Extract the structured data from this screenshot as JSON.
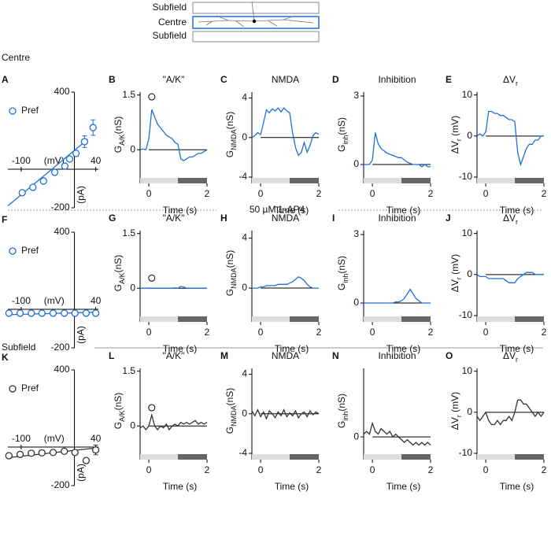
{
  "header": {
    "labels": [
      "Subfield",
      "Centre",
      "Subfield"
    ]
  },
  "sections": {
    "centre": "Centre",
    "drug": [
      "50 µM ",
      "L",
      "-AP4"
    ],
    "subfield": "Subfield"
  },
  "chart_data": [
    {
      "type": "scatter",
      "panel": "A",
      "legend": "Pref",
      "color": "#1e6fd9",
      "x": [
        -98,
        -78,
        -58,
        -37,
        -18,
        -9,
        3,
        19,
        35
      ],
      "values": [
        -122,
        -94,
        -61,
        -16,
        16,
        53,
        82,
        143,
        216
      ],
      "errors": [
        10,
        10,
        10,
        10,
        10,
        10,
        15,
        30,
        40
      ],
      "fit_x": [
        -125,
        25
      ],
      "fit_y": [
        -190,
        155
      ],
      "xlim": [
        -125,
        45
      ],
      "xticks": [
        -100,
        40
      ],
      "xlabel": "(mV)",
      "ylim": [
        -200,
        400
      ],
      "yticks": [
        -200,
        400
      ],
      "ylabel": "(pA)"
    },
    {
      "type": "line",
      "panel": "B",
      "title": "\"A/K\"",
      "ylabel": [
        "G",
        "A/K",
        "(nS)"
      ],
      "xlabel": "Time (s)",
      "color": "#1e6fd9",
      "x": [
        -0.3,
        -0.2,
        -0.1,
        0,
        0.1,
        0.2,
        0.3,
        0.4,
        0.5,
        0.6,
        0.7,
        0.8,
        0.9,
        1.0,
        1.1,
        1.2,
        1.3,
        1.4,
        1.5,
        1.6,
        1.7,
        1.8,
        1.9,
        2.0
      ],
      "values": [
        0,
        0.02,
        0,
        0.3,
        1.1,
        0.9,
        0.7,
        0.6,
        0.5,
        0.4,
        0.35,
        0.3,
        0.2,
        0.15,
        -0.25,
        -0.3,
        -0.25,
        -0.2,
        -0.2,
        -0.15,
        -0.1,
        -0.1,
        -0.05,
        0
      ],
      "marker": {
        "x": 0.1,
        "y": 1.45
      },
      "stimulus": [
        1,
        2
      ],
      "xlim": [
        -0.3,
        2
      ],
      "xticks": [
        0,
        2
      ],
      "ylim": [
        -0.75,
        1.58
      ],
      "yticks": [
        0,
        1.5
      ]
    },
    {
      "type": "line",
      "panel": "C",
      "title": "NMDA",
      "ylabel": [
        "G",
        "NMDA",
        "(nS)"
      ],
      "xlabel": "Time (s)",
      "color": "#1e6fd9",
      "x": [
        -0.3,
        -0.2,
        -0.1,
        0,
        0.1,
        0.2,
        0.3,
        0.4,
        0.5,
        0.6,
        0.7,
        0.8,
        0.9,
        1.0,
        1.1,
        1.2,
        1.3,
        1.4,
        1.5,
        1.6,
        1.7,
        1.8,
        1.9,
        2.0
      ],
      "values": [
        0,
        0.2,
        0.5,
        0.3,
        1.5,
        2.8,
        2.5,
        2.9,
        2.7,
        3.0,
        2.6,
        3.0,
        2.7,
        2.5,
        0.5,
        -1,
        -1.8,
        -1.5,
        -0.5,
        -1.5,
        -0.8,
        0.2,
        0.5,
        0.3
      ],
      "stimulus": [
        1,
        2
      ],
      "xlim": [
        -0.3,
        2
      ],
      "xticks": [
        0,
        2
      ],
      "ylim": [
        -4,
        4.6
      ],
      "yticks": [
        -4,
        0,
        4
      ]
    },
    {
      "type": "line",
      "panel": "D",
      "title": "Inhibition",
      "ylabel": [
        "G",
        "inh",
        "(nS)"
      ],
      "xlabel": "Time (s)",
      "color": "#1e6fd9",
      "x": [
        -0.3,
        -0.2,
        -0.1,
        0,
        0.1,
        0.2,
        0.3,
        0.4,
        0.5,
        0.6,
        0.7,
        0.8,
        0.9,
        1.0,
        1.1,
        1.2,
        1.3,
        1.4,
        1.5,
        1.6,
        1.7,
        1.8,
        1.9,
        2.0
      ],
      "values": [
        0,
        0,
        0,
        0.2,
        1.4,
        0.9,
        0.7,
        0.6,
        0.5,
        0.45,
        0.4,
        0.35,
        0.3,
        0.3,
        0.2,
        0.1,
        0.05,
        0,
        0,
        0,
        -0.1,
        0,
        -0.1,
        -0.1
      ],
      "stimulus": [
        1,
        2
      ],
      "xlim": [
        -0.3,
        2
      ],
      "xticks": [
        0,
        2
      ],
      "ylim": [
        -0.55,
        3.17
      ],
      "yticks": [
        0,
        3
      ]
    },
    {
      "type": "line",
      "panel": "E",
      "title": [
        "ΔV",
        "r"
      ],
      "ylabel": [
        "ΔV",
        "r",
        " (mV)"
      ],
      "xlabel": "Time (s)",
      "color": "#1e6fd9",
      "x": [
        -0.3,
        -0.2,
        -0.1,
        0,
        0.1,
        0.2,
        0.3,
        0.4,
        0.5,
        0.6,
        0.7,
        0.8,
        0.9,
        1.0,
        1.1,
        1.2,
        1.3,
        1.4,
        1.5,
        1.6,
        1.7,
        1.8,
        1.9,
        2.0
      ],
      "values": [
        0,
        0.5,
        0,
        1,
        6,
        6,
        5.5,
        5.5,
        5,
        5,
        4.5,
        4,
        4,
        3.5,
        -4,
        -7,
        -5,
        -3,
        -2,
        -2,
        -1,
        -1,
        0,
        0
      ],
      "stimulus": [
        1,
        2
      ],
      "xlim": [
        -0.3,
        2
      ],
      "xticks": [
        0,
        2
      ],
      "ylim": [
        -10,
        10.7
      ],
      "yticks": [
        -10,
        0,
        10
      ]
    },
    {
      "type": "scatter",
      "panel": "F",
      "legend": "Pref",
      "color": "#1e6fd9",
      "x": [
        -123,
        -102,
        -81,
        -61,
        -40,
        -19,
        1,
        22,
        40
      ],
      "values": [
        -20,
        -20,
        -20,
        -20,
        -20,
        -20,
        -20,
        -20,
        -20
      ],
      "errors": [
        5,
        5,
        5,
        5,
        5,
        5,
        5,
        5,
        5
      ],
      "fit_x": [
        -125,
        40
      ],
      "fit_y": [
        -28,
        -15
      ],
      "xlim": [
        -125,
        45
      ],
      "xticks": [
        -100,
        40
      ],
      "xlabel": "(mV)",
      "ylim": [
        -200,
        400
      ],
      "yticks": [
        -200,
        400
      ],
      "ylabel": "(pA)"
    },
    {
      "type": "line",
      "panel": "G",
      "title": "\"A/K\"",
      "ylabel": [
        "G",
        "A/K",
        "(nS)"
      ],
      "xlabel": "Time (s)",
      "color": "#1e6fd9",
      "x": [
        -0.3,
        -0.2,
        -0.1,
        0,
        0.1,
        0.2,
        0.3,
        0.4,
        0.5,
        0.6,
        0.7,
        0.8,
        0.9,
        1.0,
        1.1,
        1.2,
        1.3,
        1.4,
        1.5,
        1.6,
        1.7,
        1.8,
        1.9,
        2.0
      ],
      "values": [
        0,
        0,
        0,
        0,
        0,
        0,
        0,
        0,
        0,
        0,
        0,
        0,
        0.01,
        0,
        0.05,
        0.03,
        0,
        0,
        0,
        0,
        0,
        0,
        0,
        0
      ],
      "marker": {
        "x": 0.1,
        "y": 0.28
      },
      "stimulus": [
        1,
        2
      ],
      "xlim": [
        -0.3,
        2
      ],
      "xticks": [
        0,
        2
      ],
      "ylim": [
        -0.75,
        1.58
      ],
      "yticks": [
        0,
        1.5
      ]
    },
    {
      "type": "line",
      "panel": "H",
      "title": "NMDA",
      "ylabel": [
        "G",
        "NMDA",
        "(nS)"
      ],
      "xlabel": "Time (s)",
      "color": "#1e6fd9",
      "x": [
        -0.3,
        -0.2,
        -0.1,
        0,
        0.1,
        0.2,
        0.3,
        0.4,
        0.5,
        0.6,
        0.7,
        0.8,
        0.9,
        1.0,
        1.1,
        1.2,
        1.3,
        1.4,
        1.5,
        1.6,
        1.7,
        1.8,
        1.9,
        2.0
      ],
      "values": [
        0,
        0,
        0,
        0.1,
        0.1,
        0.2,
        0.2,
        0.2,
        0.2,
        0.3,
        0.3,
        0.3,
        0.3,
        0.4,
        0.5,
        0.7,
        0.9,
        0.8,
        0.6,
        0.3,
        0.1,
        0,
        0,
        0
      ],
      "stimulus": [
        1,
        2
      ],
      "xlim": [
        -0.3,
        2
      ],
      "xticks": [
        0,
        2
      ],
      "ylim": [
        -2.2,
        4.6
      ],
      "yticks": [
        0,
        4
      ]
    },
    {
      "type": "line",
      "panel": "I",
      "title": "Inhibition",
      "ylabel": [
        "G",
        "inh",
        "(nS)"
      ],
      "xlabel": "Time (s)",
      "color": "#1e6fd9",
      "x": [
        -0.3,
        -0.2,
        -0.1,
        0,
        0.1,
        0.2,
        0.3,
        0.4,
        0.5,
        0.6,
        0.7,
        0.8,
        0.9,
        1.0,
        1.1,
        1.2,
        1.3,
        1.4,
        1.5,
        1.6,
        1.7,
        1.8,
        1.9,
        2.0
      ],
      "values": [
        0,
        0,
        0,
        0,
        0,
        0,
        0,
        0,
        0,
        0,
        0,
        0.05,
        0.05,
        0.1,
        0.2,
        0.4,
        0.6,
        0.4,
        0.2,
        0.1,
        0,
        0,
        0,
        0
      ],
      "stimulus": [
        1,
        2
      ],
      "xlim": [
        -0.3,
        2
      ],
      "xticks": [
        0,
        2
      ],
      "ylim": [
        -0.55,
        3.17
      ],
      "yticks": [
        0,
        3
      ]
    },
    {
      "type": "line",
      "panel": "J",
      "title": [
        "ΔV",
        "r"
      ],
      "ylabel": [
        "ΔV",
        "r",
        " (mV)"
      ],
      "xlabel": "Time (s)",
      "color": "#1e6fd9",
      "x": [
        -0.3,
        -0.2,
        -0.1,
        0,
        0.1,
        0.2,
        0.3,
        0.4,
        0.5,
        0.6,
        0.7,
        0.8,
        0.9,
        1.0,
        1.1,
        1.2,
        1.3,
        1.4,
        1.5,
        1.6,
        1.7,
        1.8,
        1.9,
        2.0
      ],
      "values": [
        0,
        -0.5,
        -0.5,
        -0.5,
        -1,
        -1,
        -1,
        -1,
        -1,
        -1,
        -1.5,
        -2,
        -2,
        -2,
        -1,
        -0.5,
        0,
        0.5,
        0.5,
        0.5,
        0,
        0,
        0,
        0
      ],
      "stimulus": [
        1,
        2
      ],
      "xlim": [
        -0.3,
        2
      ],
      "xticks": [
        0,
        2
      ],
      "ylim": [
        -10,
        10.7
      ],
      "yticks": [
        -10,
        0,
        10
      ]
    },
    {
      "type": "scatter",
      "panel": "K",
      "legend": "Pref",
      "color": "#333333",
      "x": [
        -123,
        -102,
        -81,
        -61,
        -40,
        -19,
        1,
        22,
        40
      ],
      "values": [
        -45,
        -38,
        -32,
        -30,
        -28,
        -22,
        -28,
        -70,
        -15
      ],
      "errors": [
        6,
        6,
        6,
        6,
        6,
        6,
        8,
        10,
        25
      ],
      "fit_x": [
        -125,
        40
      ],
      "fit_y": [
        -55,
        -5
      ],
      "xlim": [
        -125,
        45
      ],
      "xticks": [
        -100,
        40
      ],
      "xlabel": "(mV)",
      "ylim": [
        -200,
        400
      ],
      "yticks": [
        -200,
        400
      ],
      "ylabel": "(pA)"
    },
    {
      "type": "line",
      "panel": "L",
      "title": "\"A/K\"",
      "ylabel": [
        "G",
        "A/K",
        "(nS)"
      ],
      "xlabel": "Time (s)",
      "color": "#333333",
      "x": [
        -0.3,
        -0.2,
        -0.1,
        0,
        0.1,
        0.2,
        0.3,
        0.4,
        0.5,
        0.6,
        0.7,
        0.8,
        0.9,
        1.0,
        1.1,
        1.2,
        1.3,
        1.4,
        1.5,
        1.6,
        1.7,
        1.8,
        1.9,
        2.0
      ],
      "values": [
        -0.05,
        0,
        -0.1,
        0,
        0.3,
        0,
        -0.1,
        0,
        -0.05,
        0.05,
        -0.1,
        0,
        0.05,
        0,
        0.1,
        0.05,
        0.1,
        0.05,
        0.1,
        0.15,
        0.05,
        0.1,
        0.05,
        0.1
      ],
      "marker": {
        "x": 0.1,
        "y": 0.5
      },
      "stimulus": [
        1,
        2
      ],
      "xlim": [
        -0.3,
        2
      ],
      "xticks": [
        0,
        2
      ],
      "ylim": [
        -0.75,
        1.58
      ],
      "yticks": [
        0,
        1.5
      ]
    },
    {
      "type": "line",
      "panel": "M",
      "title": "NMDA",
      "ylabel": [
        "G",
        "NMDA",
        "(nS)"
      ],
      "xlabel": "Time (s)",
      "color": "#333333",
      "x": [
        -0.3,
        -0.2,
        -0.1,
        0,
        0.1,
        0.2,
        0.3,
        0.4,
        0.5,
        0.6,
        0.7,
        0.8,
        0.9,
        1.0,
        1.1,
        1.2,
        1.3,
        1.4,
        1.5,
        1.6,
        1.7,
        1.8,
        1.9,
        2.0
      ],
      "values": [
        0.3,
        -0.2,
        0.4,
        -0.3,
        0.2,
        -0.5,
        0.3,
        0,
        -0.4,
        0.2,
        -0.2,
        0.4,
        -0.3,
        0.1,
        -0.2,
        0.3,
        -0.4,
        0,
        0.2,
        -0.3,
        0.3,
        -0.1,
        0.2,
        0
      ],
      "stimulus": [
        1,
        2
      ],
      "xlim": [
        -0.3,
        2
      ],
      "xticks": [
        0,
        2
      ],
      "ylim": [
        -4,
        4.6
      ],
      "yticks": [
        -4,
        0,
        4
      ]
    },
    {
      "type": "line",
      "panel": "N",
      "title": "Inhibition",
      "ylabel": [
        "G",
        "inh",
        "(nS)"
      ],
      "xlabel": "Time (s)",
      "color": "#333333",
      "x": [
        -0.3,
        -0.2,
        -0.1,
        0,
        0.1,
        0.2,
        0.3,
        0.4,
        0.5,
        0.6,
        0.7,
        0.8,
        0.9,
        1.0,
        1.1,
        1.2,
        1.3,
        1.4,
        1.5,
        1.6,
        1.7,
        1.8,
        1.9,
        2.0
      ],
      "values": [
        0.1,
        0.2,
        0.1,
        0.5,
        0.2,
        0.1,
        0.3,
        0.2,
        0.1,
        0.2,
        0,
        0.1,
        0,
        -0.1,
        -0.2,
        -0.1,
        -0.2,
        -0.3,
        -0.2,
        -0.3,
        -0.2,
        -0.3,
        -0.2,
        -0.3
      ],
      "stimulus": [
        1,
        2
      ],
      "xlim": [
        -0.3,
        2
      ],
      "xticks": [
        0,
        2
      ],
      "ylim": [
        -0.6,
        2.5
      ],
      "yticks": [
        0
      ]
    },
    {
      "type": "line",
      "panel": "O",
      "title": [
        "ΔV",
        "r"
      ],
      "ylabel": [
        "ΔV",
        "r",
        " (mV)"
      ],
      "xlabel": "Time (s)",
      "color": "#333333",
      "x": [
        -0.3,
        -0.2,
        -0.1,
        0,
        0.1,
        0.2,
        0.3,
        0.4,
        0.5,
        0.6,
        0.7,
        0.8,
        0.9,
        1.0,
        1.1,
        1.2,
        1.3,
        1.4,
        1.5,
        1.6,
        1.7,
        1.8,
        1.9,
        2.0
      ],
      "values": [
        -1,
        -2,
        -1,
        0,
        -2,
        -3,
        -3,
        -2,
        -3,
        -2,
        -2,
        -1,
        -2,
        0,
        3,
        3,
        2,
        2,
        1,
        0,
        -1,
        0,
        -1,
        0
      ],
      "stimulus": [
        1,
        2
      ],
      "xlim": [
        -0.3,
        2
      ],
      "xticks": [
        0,
        2
      ],
      "ylim": [
        -10,
        10.7
      ],
      "yticks": [
        -10,
        0,
        10
      ]
    }
  ]
}
